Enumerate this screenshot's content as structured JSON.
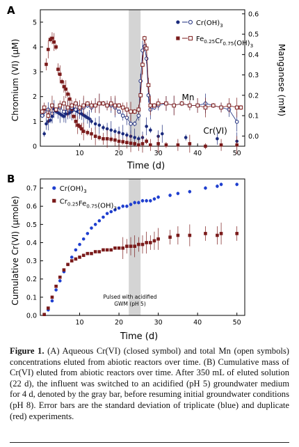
{
  "chart_data": [
    {
      "panel_label": "A",
      "type": "scatter",
      "xlabel": "Time (d)",
      "ylabel": "Chromium (VI) (μM)",
      "y2label": "Manganese (mM)",
      "xlim": [
        0,
        52
      ],
      "ylim": [
        0,
        5.5
      ],
      "y2lim": [
        -0.05,
        0.62
      ],
      "xticks": [
        10,
        20,
        30,
        40,
        50
      ],
      "yticks": [
        0,
        1,
        2,
        3,
        4,
        5
      ],
      "y2ticks": [
        0.0,
        0.1,
        0.2,
        0.3,
        0.4,
        0.5,
        0.6
      ],
      "y2ticklabels": [
        "0.0",
        "0.1",
        "0.2",
        "0.3",
        "0.4",
        "0.5",
        "0.6"
      ],
      "shaded_region": [
        22.5,
        25.5
      ],
      "legend_position": "top-right",
      "annotations": [
        {
          "text": "Mn",
          "x": 36,
          "y2": 0.175
        },
        {
          "text": "Cr(VI)",
          "x": 45,
          "y": 0.5
        }
      ],
      "series": [
        {
          "name": "Cr(OH)3",
          "label_main": "Cr(OH)",
          "label_sub": "3",
          "axis": "left",
          "marker": "circle-filled",
          "color": "#1a2a7c",
          "x": [
            1,
            1.5,
            2,
            2.5,
            3,
            3.5,
            4,
            4.5,
            5,
            5.5,
            6,
            6.5,
            7,
            7.5,
            8,
            8.5,
            9,
            9.5,
            10,
            10.5,
            11,
            11.5,
            12,
            12.5,
            13,
            14,
            15,
            16,
            17,
            18,
            19,
            20,
            21,
            22,
            23,
            24,
            25,
            26,
            27,
            28,
            30,
            31,
            37,
            45,
            50
          ],
          "y": [
            0.5,
            0.9,
            1.0,
            1.05,
            1.2,
            1.5,
            1.4,
            1.35,
            1.3,
            1.25,
            1.2,
            1.3,
            1.3,
            1.35,
            1.4,
            1.5,
            1.45,
            1.4,
            1.35,
            1.3,
            1.25,
            1.2,
            1.15,
            1.1,
            1.0,
            0.9,
            0.85,
            0.75,
            0.7,
            0.65,
            0.6,
            0.55,
            0.5,
            0.45,
            0.4,
            0.35,
            0.3,
            0.35,
            0.8,
            0.65,
            0.4,
            0.5,
            0.35,
            0.3,
            0.2
          ]
        },
        {
          "name": "Fe0.25Cr0.75(OH)3",
          "label_main": "Fe",
          "label_sub": "0.25",
          "label_main2": "Cr",
          "label_sub2": "0.75",
          "label_main3": "(OH)",
          "label_sub3": "3",
          "axis": "left",
          "marker": "square-filled",
          "color": "#7a1a1a",
          "x": [
            1,
            1.5,
            2,
            2.5,
            3,
            3.5,
            4,
            4.5,
            5,
            5.5,
            6,
            6.5,
            7,
            7.5,
            8,
            8.5,
            9,
            9.5,
            10,
            10.5,
            11,
            12,
            13,
            14,
            15,
            16,
            17,
            18,
            19,
            20,
            21,
            22,
            23,
            24,
            25,
            26,
            27,
            28,
            30,
            32,
            35,
            38,
            42,
            46,
            50
          ],
          "y": [
            1.5,
            3.3,
            3.9,
            4.3,
            4.35,
            4.2,
            4.0,
            3.1,
            2.9,
            2.6,
            2.4,
            2.3,
            2.1,
            1.9,
            1.5,
            1.2,
            1.0,
            0.85,
            0.8,
            0.7,
            0.6,
            0.55,
            0.5,
            0.4,
            0.35,
            0.3,
            0.3,
            0.28,
            0.25,
            0.2,
            0.18,
            0.15,
            0.12,
            0.1,
            0.05,
            0.1,
            0.2,
            0.05,
            0.1,
            0.05,
            0.05,
            0.1,
            0.0,
            0.05,
            0.05
          ]
        },
        {
          "name": "Mn (Cr(OH)3)",
          "axis": "right",
          "marker": "circle-open",
          "color": "#1a2a7c",
          "x": [
            0.5,
            1,
            2,
            3,
            4,
            5,
            6,
            7,
            8,
            9,
            10,
            11,
            12,
            13,
            14,
            15,
            16,
            17,
            18,
            19,
            20,
            21,
            22,
            23,
            24,
            25,
            25.5,
            26,
            26.5,
            27,
            27.5,
            28,
            29,
            30,
            32,
            34,
            36,
            38,
            40,
            42,
            44,
            46,
            48,
            50
          ],
          "y2": [
            0.1,
            0.12,
            0.13,
            0.11,
            0.13,
            0.14,
            0.12,
            0.13,
            0.14,
            0.13,
            0.12,
            0.14,
            0.15,
            0.14,
            0.15,
            0.16,
            0.16,
            0.15,
            0.15,
            0.14,
            0.12,
            0.1,
            0.09,
            0.06,
            0.06,
            0.1,
            0.27,
            0.42,
            0.44,
            0.38,
            0.2,
            0.13,
            0.14,
            0.15,
            0.16,
            0.15,
            0.16,
            0.15,
            0.15,
            0.16,
            0.15,
            0.14,
            0.13,
            0.07
          ]
        },
        {
          "name": "Mn (Fe0.25Cr0.75(OH)3)",
          "axis": "right",
          "marker": "square-open",
          "color": "#7a1a1a",
          "x": [
            0.5,
            1,
            2,
            3,
            4,
            5,
            6,
            7,
            8,
            9,
            10,
            11,
            12,
            13,
            14,
            15,
            16,
            17,
            18,
            19,
            20,
            21,
            22,
            23,
            24,
            25,
            25.5,
            26,
            26.5,
            27,
            27.5,
            28,
            29,
            30,
            32,
            34,
            36,
            38,
            40,
            42,
            44,
            46,
            48,
            50,
            51
          ],
          "y2": [
            0.12,
            0.14,
            0.1,
            0.15,
            0.13,
            0.15,
            0.16,
            0.14,
            0.15,
            0.16,
            0.14,
            0.15,
            0.16,
            0.15,
            0.15,
            0.16,
            0.16,
            0.15,
            0.16,
            0.15,
            0.15,
            0.14,
            0.13,
            0.12,
            0.12,
            0.13,
            0.2,
            0.35,
            0.48,
            0.43,
            0.25,
            0.15,
            0.15,
            0.16,
            0.16,
            0.15,
            0.16,
            0.15,
            0.15,
            0.14,
            0.15,
            0.14,
            0.15,
            0.14,
            0.14
          ]
        }
      ]
    },
    {
      "panel_label": "B",
      "type": "scatter",
      "xlabel": "Time (d)",
      "ylabel": "Cumulative Cr(VI) (μmole)",
      "xlim": [
        0,
        52
      ],
      "ylim": [
        0,
        0.75
      ],
      "xticks": [
        10,
        20,
        30,
        40,
        50
      ],
      "yticks": [
        0.0,
        0.1,
        0.2,
        0.3,
        0.4,
        0.5,
        0.6,
        0.7
      ],
      "yticklabels": [
        "0.0",
        "0.1",
        "0.2",
        "0.3",
        "0.4",
        "0.5",
        "0.6",
        "0.7"
      ],
      "shaded_region": [
        22.5,
        25.5
      ],
      "legend_position": "top-left",
      "annotation_lines": [
        "Pulsed with acidified",
        "GWM (pH 5)"
      ],
      "series": [
        {
          "name": "Cr(OH)3",
          "label_main": "Cr(OH)",
          "label_sub": "3",
          "marker": "circle-filled",
          "color": "#1f3fcf",
          "x": [
            1,
            2,
            3,
            4,
            5,
            6,
            7,
            8,
            9,
            10,
            11,
            12,
            13,
            14,
            15,
            16,
            17,
            18,
            19,
            20,
            21,
            22,
            23,
            24,
            25,
            26,
            27,
            28,
            29,
            30,
            33,
            35,
            38,
            42,
            45,
            46,
            50
          ],
          "y": [
            0.005,
            0.03,
            0.08,
            0.14,
            0.19,
            0.24,
            0.28,
            0.32,
            0.36,
            0.39,
            0.42,
            0.45,
            0.48,
            0.5,
            0.52,
            0.54,
            0.56,
            0.57,
            0.58,
            0.59,
            0.6,
            0.6,
            0.61,
            0.62,
            0.62,
            0.63,
            0.63,
            0.63,
            0.64,
            0.65,
            0.66,
            0.67,
            0.68,
            0.7,
            0.71,
            0.72,
            0.72
          ]
        },
        {
          "name": "Cr0.25Fe0.75(OH)3",
          "label_main": "Cr",
          "label_sub": "0.25",
          "label_main2": "Fe",
          "label_sub2": "0.75",
          "label_main3": "(OH)",
          "label_sub3": "3",
          "marker": "square-filled",
          "color": "#7a1a1a",
          "x": [
            1,
            2,
            3,
            4,
            5,
            6,
            7,
            8,
            9,
            10,
            11,
            12,
            13,
            14,
            15,
            16,
            17,
            18,
            19,
            20,
            21,
            22,
            23,
            24,
            25,
            26,
            27,
            28,
            29,
            30,
            33,
            35,
            38,
            42,
            45,
            46,
            50
          ],
          "y": [
            0.005,
            0.04,
            0.1,
            0.16,
            0.21,
            0.25,
            0.28,
            0.3,
            0.31,
            0.32,
            0.33,
            0.34,
            0.34,
            0.35,
            0.35,
            0.36,
            0.36,
            0.36,
            0.37,
            0.37,
            0.37,
            0.38,
            0.38,
            0.38,
            0.39,
            0.39,
            0.4,
            0.4,
            0.41,
            0.42,
            0.43,
            0.44,
            0.44,
            0.45,
            0.44,
            0.45,
            0.45
          ]
        }
      ]
    }
  ],
  "caption": {
    "label": "Figure 1.",
    "text": "(A) Aqueous Cr(VI) (closed symbol) and total Mn (open symbols) concentrations eluted from abiotic reactors over time. (B) Cumulative mass of Cr(VI) eluted from abiotic reactors over time. After 350 mL of eluted solution (22 d), the influent was switched to an acidified (pH 5) groundwater medium for 4 d, denoted by the gray bar, before resuming initial groundwater conditions (pH 8). Error bars are the standard deviation of triplicate (blue) and duplicate (red) experiments."
  }
}
